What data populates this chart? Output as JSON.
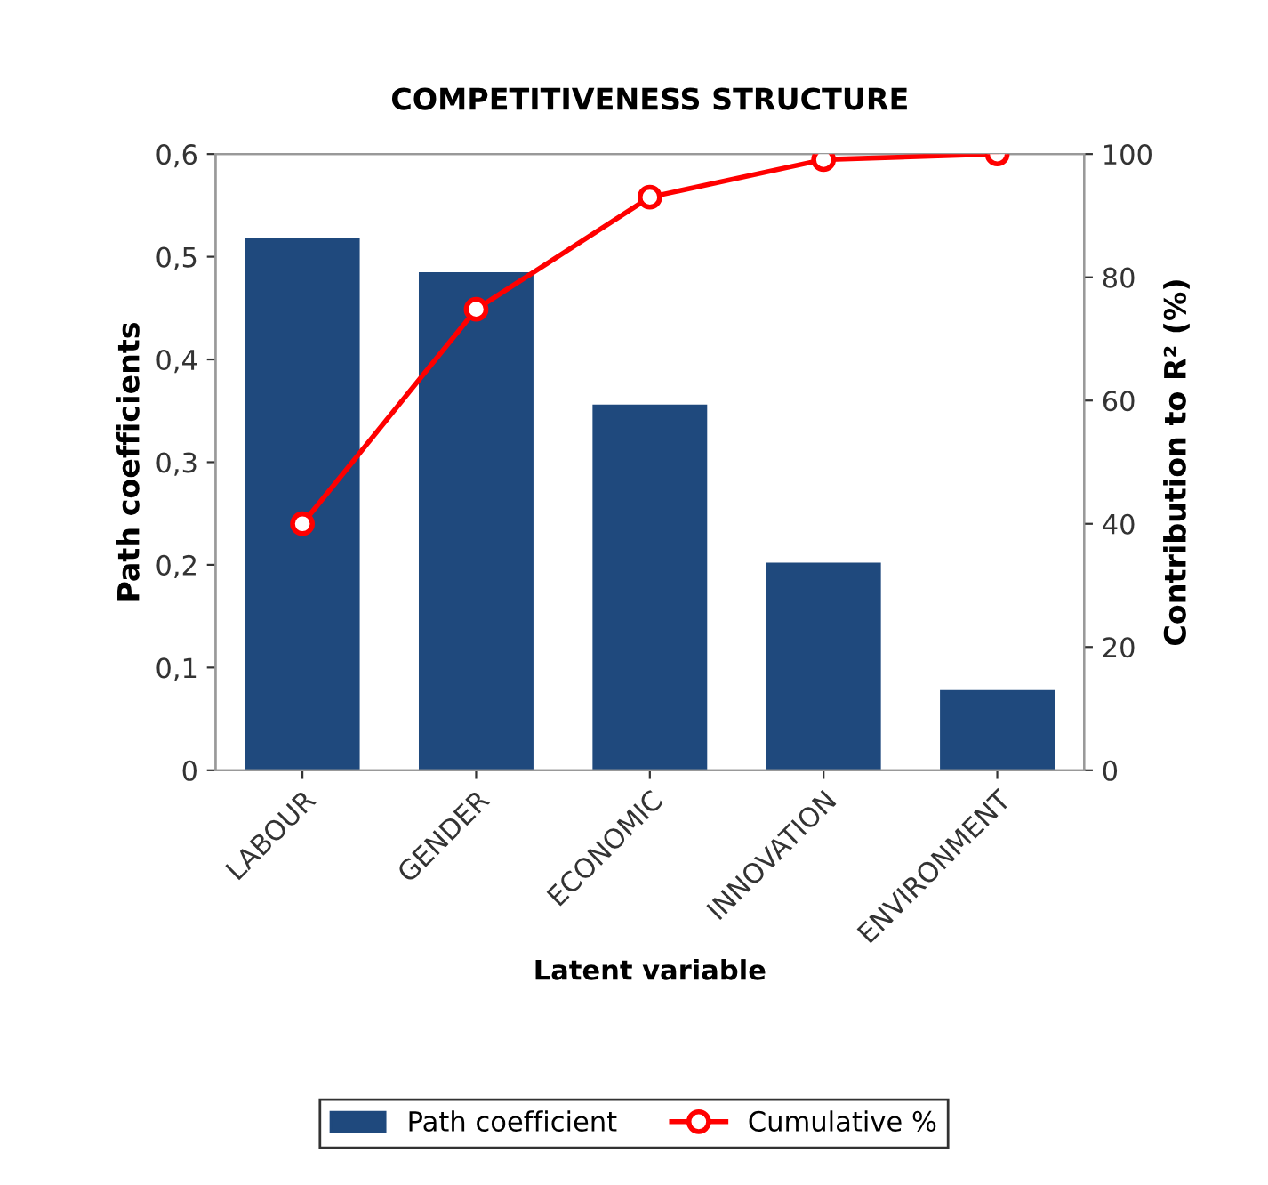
{
  "chart_data": {
    "type": "bar",
    "title": "COMPETITIVENESS STRUCTURE",
    "xlabel": "Latent variable",
    "ylabel": "Path coefficients",
    "y2label": "Contribution to R² (%)",
    "categories": [
      "LABOUR",
      "GENDER",
      "ECONOMIC",
      "INNOVATION",
      "ENVIRONMENT"
    ],
    "series": [
      {
        "name": "Path coefficient",
        "color": "#1f497d",
        "values": [
          0.518,
          0.485,
          0.356,
          0.202,
          0.078
        ]
      },
      {
        "name": "Cumulative %",
        "type": "line",
        "axis": "y2",
        "color": "#ff0000",
        "marker": "circle",
        "values": [
          40,
          74.8,
          93,
          99.1,
          100
        ]
      }
    ],
    "ylim": [
      0,
      0.6
    ],
    "yticks": [
      {
        "value": 0,
        "label": "0"
      },
      {
        "value": 0.1,
        "label": "0,1"
      },
      {
        "value": 0.2,
        "label": "0,2"
      },
      {
        "value": 0.3,
        "label": "0,3"
      },
      {
        "value": 0.4,
        "label": "0,4"
      },
      {
        "value": 0.5,
        "label": "0,5"
      },
      {
        "value": 0.6,
        "label": "0,6"
      }
    ],
    "y2lim": [
      0,
      100
    ],
    "y2ticks": [
      0,
      20,
      40,
      60,
      80,
      100
    ],
    "grid": false,
    "legend": "bottom"
  }
}
